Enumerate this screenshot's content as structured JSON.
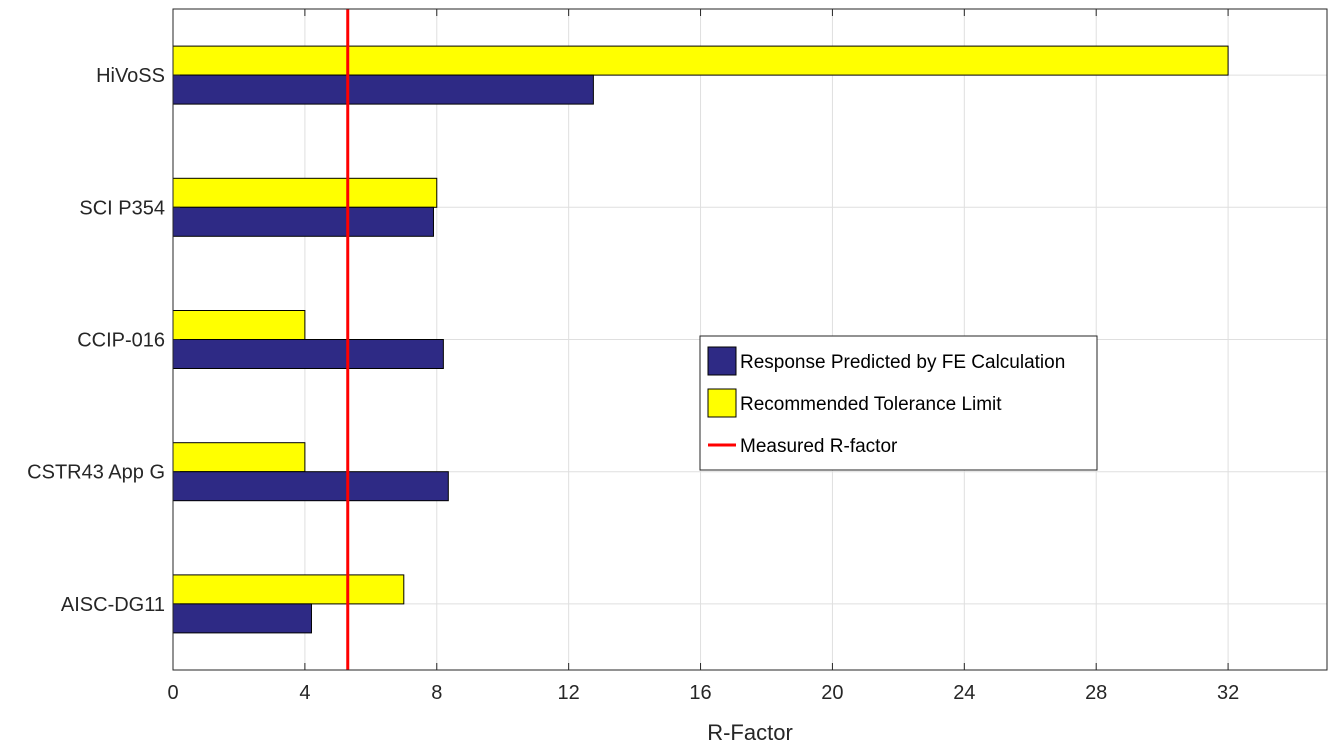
{
  "chart_data": {
    "type": "bar",
    "orientation": "horizontal",
    "categories": [
      "HiVoSS",
      "SCI P354",
      "CCIP-016",
      "CSTR43 App G",
      "AISC-DG11"
    ],
    "series": [
      {
        "name": "Recommended Tolerance Limit",
        "values": [
          32,
          8,
          4,
          4,
          7
        ],
        "color": "#ffff00"
      },
      {
        "name": "Response Predicted by FE Calculation",
        "values": [
          12.75,
          7.9,
          8.2,
          8.35,
          4.2
        ],
        "color": "#2e2a85"
      }
    ],
    "reference_line": {
      "name": "Measured R-factor",
      "value": 5.3,
      "color": "#ff0000"
    },
    "legend_order": [
      "Response Predicted by FE Calculation",
      "Recommended Tolerance Limit",
      "Measured R-factor"
    ],
    "legend_position": "center-right",
    "xlabel": "R-Factor",
    "ylabel": "",
    "title": "",
    "xlim": [
      0,
      35
    ],
    "xticks": [
      0,
      4,
      8,
      12,
      16,
      20,
      24,
      28,
      32
    ],
    "grid": true
  }
}
